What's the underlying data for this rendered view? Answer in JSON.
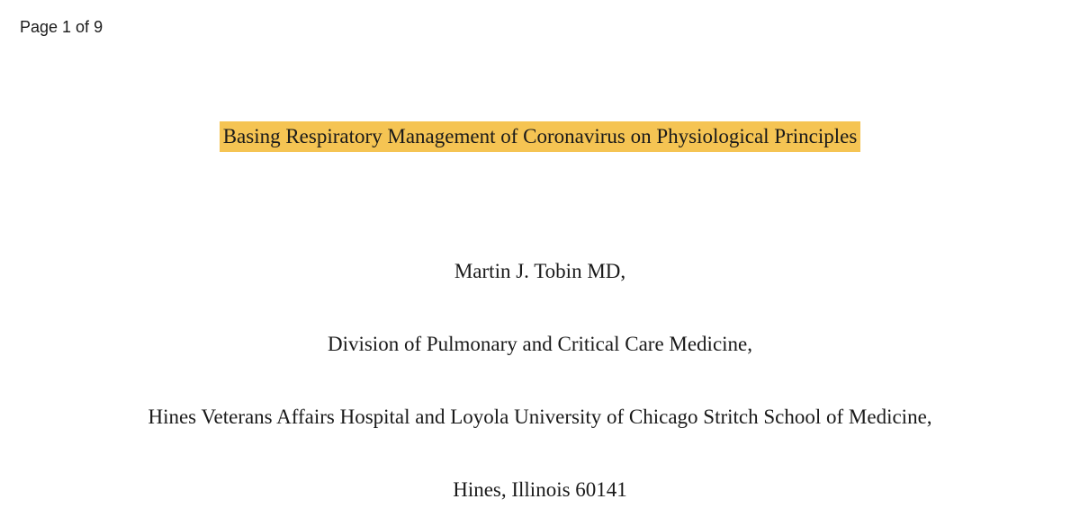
{
  "page_indicator": "Page 1 of 9",
  "document": {
    "title": "Basing Respiratory Management of Coronavirus on Physiological Principles",
    "author": "Martin J. Tobin MD,",
    "affiliation_division": "Division of Pulmonary and Critical Care Medicine,",
    "affiliation_institution": "Hines Veterans Affairs Hospital and Loyola University of Chicago Stritch School of Medicine,",
    "location": "Hines, Illinois 60141"
  },
  "styling": {
    "highlight_color": "#f5c453",
    "text_color": "#1a1a1a",
    "background_color": "#ffffff",
    "body_font": "serif",
    "header_font": "sans-serif",
    "title_fontsize": 23,
    "body_fontsize": 23,
    "page_indicator_fontsize": 18
  }
}
